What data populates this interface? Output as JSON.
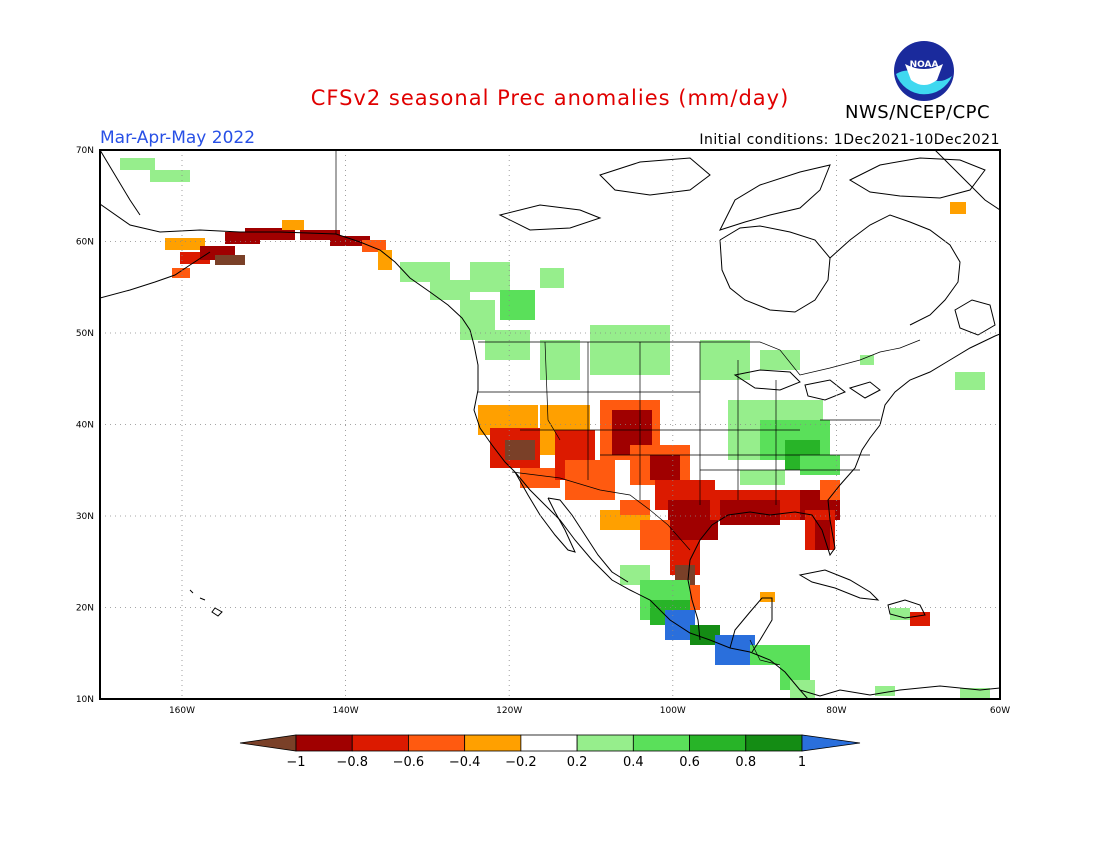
{
  "header": {
    "title": "CFSv2 seasonal Prec anomalies (mm/day)",
    "season": "Mar-Apr-May 2022",
    "initial_conditions": "Initial conditions: 1Dec2021-10Dec2021",
    "agency": "NWS/NCEP/CPC",
    "logo_text": "NOAA"
  },
  "axes": {
    "lat_labels": [
      "70N",
      "60N",
      "50N",
      "40N",
      "30N",
      "20N",
      "10N"
    ],
    "lon_labels": [
      "160W",
      "140W",
      "120W",
      "100W",
      "80W",
      "60W"
    ]
  },
  "colorbar": {
    "labels": [
      "-1",
      "-0.8",
      "-0.6",
      "-0.4",
      "-0.2",
      "0.2",
      "0.4",
      "0.6",
      "0.8",
      "1"
    ],
    "colors": [
      "#7a4028",
      "#a00000",
      "#dc1a00",
      "#ff5a10",
      "#ffa000",
      "#ffffff",
      "#96ee8c",
      "#5ae05a",
      "#28b428",
      "#148c14",
      "#2a6fdc"
    ]
  },
  "regions": [
    {
      "name": "Alaska coast dry",
      "class": -0.8
    },
    {
      "name": "Southwest US dry",
      "class": -0.6
    },
    {
      "name": "Southern Plains / Texas dry",
      "class": -0.8
    },
    {
      "name": "Gulf Coast / Florida dry",
      "class": -0.8
    },
    {
      "name": "Ohio Valley wet",
      "class": 0.4
    },
    {
      "name": "Pacific Northwest wet",
      "class": 0.2
    },
    {
      "name": "Northern Plains wet",
      "class": 0.2
    },
    {
      "name": "Southern Mexico / Central America wet",
      "class": 0.8
    }
  ]
}
